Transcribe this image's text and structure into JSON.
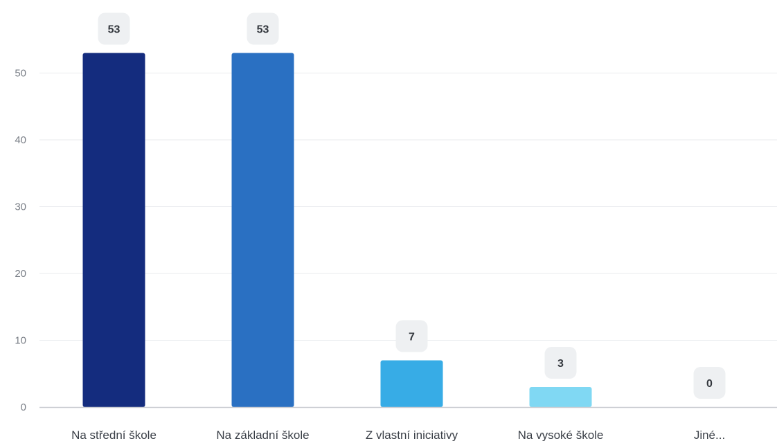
{
  "chart_data": {
    "type": "bar",
    "title": "",
    "xlabel": "",
    "ylabel": "",
    "ylim": [
      0,
      55
    ],
    "yticks": [
      0,
      10,
      20,
      30,
      40,
      50
    ],
    "grid": true,
    "legend": "none",
    "categories": [
      "Na střední škole",
      "Na základní škole",
      "Z vlastní iniciativy",
      "Na vysoké škole",
      "Jiné..."
    ],
    "values": [
      53,
      53,
      7,
      3,
      0
    ],
    "colors": [
      "#142c7e",
      "#2a70c2",
      "#37ace6",
      "#80d8f3",
      "#c9eef9"
    ],
    "data_label_bg": "#eef0f2",
    "grid_color": "#e9ebee",
    "axis_color": "#c9ccd1"
  }
}
